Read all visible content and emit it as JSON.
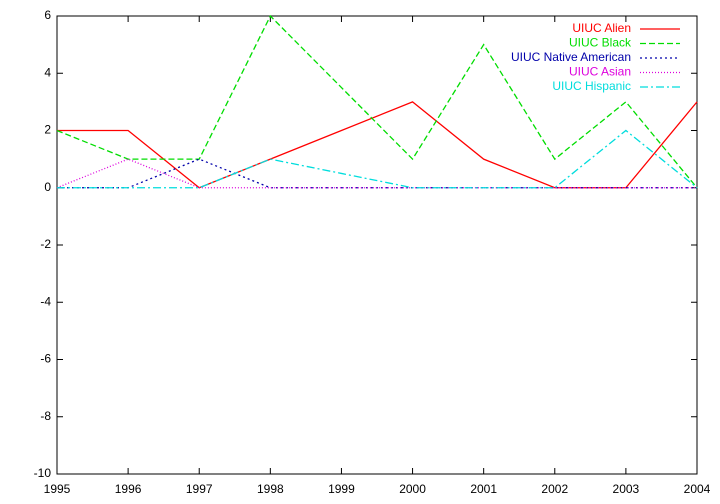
{
  "chart_data": {
    "type": "line",
    "x": [
      1995,
      1996,
      1997,
      1998,
      1999,
      2000,
      2001,
      2002,
      2003,
      2004
    ],
    "xlim": [
      1995,
      2004
    ],
    "xticks": [
      1995,
      1996,
      1997,
      1998,
      1999,
      2000,
      2001,
      2002,
      2003,
      2004
    ],
    "ylim": [
      -10,
      6
    ],
    "yticks": [
      -10,
      -8,
      -6,
      -4,
      -2,
      0,
      2,
      4,
      6
    ],
    "legend": "top-right",
    "series": [
      {
        "name": "UIUC Alien",
        "color": "#ff0000",
        "dash": "none",
        "values": [
          2,
          2,
          0,
          1,
          2,
          3,
          1,
          0,
          0,
          3
        ]
      },
      {
        "name": "UIUC Black",
        "color": "#00dd00",
        "dash": "6,3",
        "values": [
          2,
          1,
          1,
          6,
          3.5,
          1,
          5,
          1,
          3,
          0
        ]
      },
      {
        "name": "UIUC Native American",
        "color": "#0000aa",
        "dash": "2,3",
        "values": [
          0,
          0,
          1,
          0,
          0,
          0,
          0,
          0,
          0,
          0
        ]
      },
      {
        "name": "UIUC Asian",
        "color": "#dd00dd",
        "dash": "1,2",
        "values": [
          0,
          1,
          0,
          0,
          0,
          0,
          0,
          0,
          0,
          0
        ]
      },
      {
        "name": "UIUC Hispanic",
        "color": "#00dddd",
        "dash": "8,3,2,3",
        "values": [
          0,
          0,
          0,
          1,
          0.5,
          0,
          0,
          0,
          2,
          0
        ]
      }
    ]
  }
}
